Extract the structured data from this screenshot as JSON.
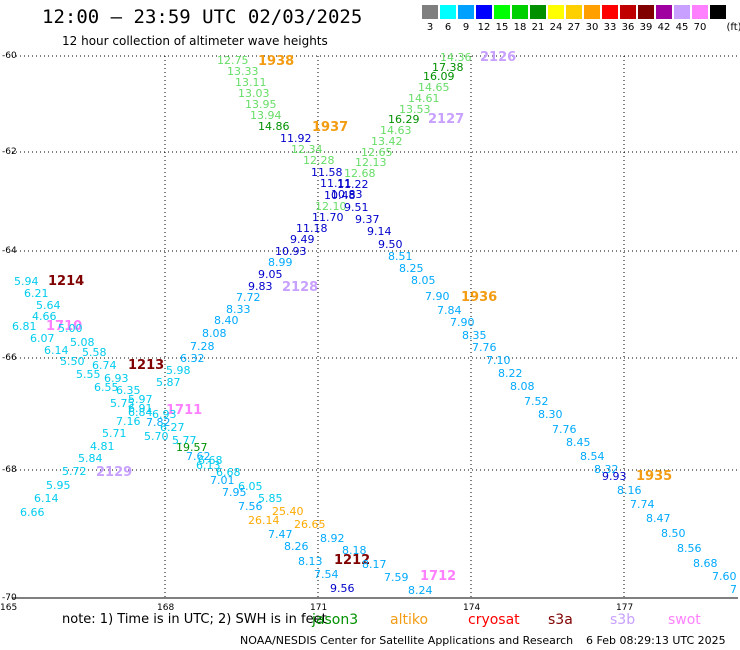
{
  "header": {
    "title": "12:00 — 23:59 UTC 02/03/2025",
    "subtitle": "12 hour collection of altimeter wave heights"
  },
  "legend": {
    "unit": "(ft)",
    "bins": [
      {
        "label": "3",
        "color": "#7f7f7f"
      },
      {
        "label": "6",
        "color": "#00ffff"
      },
      {
        "label": "9",
        "color": "#00a0ff"
      },
      {
        "label": "12",
        "color": "#0000ff"
      },
      {
        "label": "15",
        "color": "#00ff00"
      },
      {
        "label": "18",
        "color": "#00d000"
      },
      {
        "label": "21",
        "color": "#009000"
      },
      {
        "label": "24",
        "color": "#ffff00"
      },
      {
        "label": "27",
        "color": "#ffd000"
      },
      {
        "label": "30",
        "color": "#ffa000"
      },
      {
        "label": "33",
        "color": "#ff0000"
      },
      {
        "label": "36",
        "color": "#c00000"
      },
      {
        "label": "39",
        "color": "#800000"
      },
      {
        "label": "42",
        "color": "#a000a0"
      },
      {
        "label": "45",
        "color": "#c8a0ff"
      },
      {
        "label": "70",
        "color": "#ff80ff"
      },
      {
        "label": "",
        "color": "#000000"
      }
    ]
  },
  "axes": {
    "lat_labels": [
      "-60",
      "-62",
      "-64",
      "-66",
      "-68",
      "-70"
    ],
    "lon_labels": [
      "165",
      "168",
      "171",
      "174",
      "177"
    ]
  },
  "track_times": [
    {
      "text": "1938",
      "color": "#f39c12"
    },
    {
      "text": "1937",
      "color": "#f39c12"
    },
    {
      "text": "2126",
      "color": "#c8a0ff"
    },
    {
      "text": "2127",
      "color": "#c8a0ff"
    },
    {
      "text": "2128",
      "color": "#c8a0ff"
    },
    {
      "text": "1936",
      "color": "#f39c12"
    },
    {
      "text": "1214",
      "color": "#800000"
    },
    {
      "text": "1213",
      "color": "#800000"
    },
    {
      "text": "1711",
      "color": "#ff80ff"
    },
    {
      "text": "1710",
      "color": "#ff80ff"
    },
    {
      "text": "2129",
      "color": "#c8a0ff"
    },
    {
      "text": "1935",
      "color": "#f39c12"
    },
    {
      "text": "1212",
      "color": "#800000"
    },
    {
      "text": "1712",
      "color": "#ff80ff"
    }
  ],
  "readings": [
    {
      "v": "12.75",
      "c": "#66dd66"
    },
    {
      "v": "13.33",
      "c": "#66dd66"
    },
    {
      "v": "13.11",
      "c": "#66dd66"
    },
    {
      "v": "13.03",
      "c": "#66dd66"
    },
    {
      "v": "13.95",
      "c": "#66dd66"
    },
    {
      "v": "13.94",
      "c": "#66dd66"
    },
    {
      "v": "14.86",
      "c": "#009000"
    },
    {
      "v": "11.92",
      "c": "#0000cc"
    },
    {
      "v": "12.34",
      "c": "#66dd66"
    },
    {
      "v": "12.28",
      "c": "#66dd66"
    },
    {
      "v": "11.58",
      "c": "#0000cc"
    },
    {
      "v": "11.11",
      "c": "#0000cc"
    },
    {
      "v": "10.48",
      "c": "#0000cc"
    },
    {
      "v": "12.10",
      "c": "#66dd66"
    },
    {
      "v": "11.70",
      "c": "#0000cc"
    },
    {
      "v": "11.18",
      "c": "#0000cc"
    },
    {
      "v": "9.49",
      "c": "#0000cc"
    },
    {
      "v": "10.93",
      "c": "#0000cc"
    },
    {
      "v": "8.99",
      "c": "#00aaff"
    },
    {
      "v": "9.05",
      "c": "#0000cc"
    },
    {
      "v": "9.83",
      "c": "#0000cc"
    },
    {
      "v": "7.72",
      "c": "#00aaff"
    },
    {
      "v": "8.33",
      "c": "#00aaff"
    },
    {
      "v": "8.40",
      "c": "#00aaff"
    },
    {
      "v": "8.08",
      "c": "#00aaff"
    },
    {
      "v": "7.28",
      "c": "#00aaff"
    },
    {
      "v": "6.32",
      "c": "#00aaff"
    },
    {
      "v": "5.98",
      "c": "#00ccee"
    },
    {
      "v": "5.87",
      "c": "#00ccee"
    },
    {
      "v": "14.36",
      "c": "#66dd66"
    },
    {
      "v": "17.38",
      "c": "#009000"
    },
    {
      "v": "16.09",
      "c": "#009000"
    },
    {
      "v": "14.65",
      "c": "#66dd66"
    },
    {
      "v": "14.61",
      "c": "#66dd66"
    },
    {
      "v": "13.53",
      "c": "#66dd66"
    },
    {
      "v": "16.29",
      "c": "#009000"
    },
    {
      "v": "14.63",
      "c": "#66dd66"
    },
    {
      "v": "13.42",
      "c": "#66dd66"
    },
    {
      "v": "12.65",
      "c": "#66dd66"
    },
    {
      "v": "12.13",
      "c": "#66dd66"
    },
    {
      "v": "12.68",
      "c": "#66dd66"
    },
    {
      "v": "11.22",
      "c": "#0000cc"
    },
    {
      "v": "10.83",
      "c": "#0000cc"
    },
    {
      "v": "9.51",
      "c": "#0000cc"
    },
    {
      "v": "9.37",
      "c": "#0000cc"
    },
    {
      "v": "9.14",
      "c": "#0000cc"
    },
    {
      "v": "9.50",
      "c": "#0000cc"
    },
    {
      "v": "8.51",
      "c": "#00aaff"
    },
    {
      "v": "8.25",
      "c": "#00aaff"
    },
    {
      "v": "8.05",
      "c": "#00aaff"
    },
    {
      "v": "7.90",
      "c": "#00aaff"
    },
    {
      "v": "7.84",
      "c": "#00aaff"
    },
    {
      "v": "7.90",
      "c": "#00aaff"
    },
    {
      "v": "8.35",
      "c": "#00aaff"
    },
    {
      "v": "7.76",
      "c": "#00aaff"
    },
    {
      "v": "7.10",
      "c": "#00aaff"
    },
    {
      "v": "8.22",
      "c": "#00aaff"
    },
    {
      "v": "8.08",
      "c": "#00aaff"
    },
    {
      "v": "7.52",
      "c": "#00aaff"
    },
    {
      "v": "8.30",
      "c": "#00aaff"
    },
    {
      "v": "7.76",
      "c": "#00aaff"
    },
    {
      "v": "8.45",
      "c": "#00aaff"
    },
    {
      "v": "8.54",
      "c": "#00aaff"
    },
    {
      "v": "8.32",
      "c": "#00aaff"
    },
    {
      "v": "9.93",
      "c": "#0000cc"
    },
    {
      "v": "8.16",
      "c": "#00aaff"
    },
    {
      "v": "7.74",
      "c": "#00aaff"
    },
    {
      "v": "8.47",
      "c": "#00aaff"
    },
    {
      "v": "8.50",
      "c": "#00aaff"
    },
    {
      "v": "8.56",
      "c": "#00aaff"
    },
    {
      "v": "8.68",
      "c": "#00aaff"
    },
    {
      "v": "7.60",
      "c": "#00aaff"
    },
    {
      "v": "7",
      "c": "#00aaff"
    },
    {
      "v": "5.94",
      "c": "#00ccee"
    },
    {
      "v": "6.21",
      "c": "#00ccee"
    },
    {
      "v": "5.64",
      "c": "#00ccee"
    },
    {
      "v": "4.66",
      "c": "#00ccee"
    },
    {
      "v": "6.81",
      "c": "#00ccee"
    },
    {
      "v": "5.00",
      "c": "#00ccee"
    },
    {
      "v": "6.07",
      "c": "#00ccee"
    },
    {
      "v": "5.08",
      "c": "#00ccee"
    },
    {
      "v": "6.14",
      "c": "#00ccee"
    },
    {
      "v": "5.58",
      "c": "#00ccee"
    },
    {
      "v": "5.50",
      "c": "#00ccee"
    },
    {
      "v": "6.74",
      "c": "#00ccee"
    },
    {
      "v": "5.55",
      "c": "#00ccee"
    },
    {
      "v": "6.93",
      "c": "#00ccee"
    },
    {
      "v": "6.55",
      "c": "#00ccee"
    },
    {
      "v": "6.35",
      "c": "#00ccee"
    },
    {
      "v": "5.75",
      "c": "#00ccee"
    },
    {
      "v": "5.97",
      "c": "#00ccee"
    },
    {
      "v": "6.84",
      "c": "#00ccee"
    },
    {
      "v": "6.91",
      "c": "#00ccee"
    },
    {
      "v": "7.16",
      "c": "#00ccee"
    },
    {
      "v": "7.82",
      "c": "#00aaff"
    },
    {
      "v": "6.93",
      "c": "#00ccee"
    },
    {
      "v": "6.27",
      "c": "#00ccee"
    },
    {
      "v": "5.71",
      "c": "#00ccee"
    },
    {
      "v": "5.70",
      "c": "#00ccee"
    },
    {
      "v": "5.77",
      "c": "#00ccee"
    },
    {
      "v": "19.57",
      "c": "#009000"
    },
    {
      "v": "7.62",
      "c": "#00aaff"
    },
    {
      "v": "4.81",
      "c": "#00ccee"
    },
    {
      "v": "6.68",
      "c": "#00ccee"
    },
    {
      "v": "5.84",
      "c": "#00ccee"
    },
    {
      "v": "6.13",
      "c": "#00ccee"
    },
    {
      "v": "5.72",
      "c": "#00ccee"
    },
    {
      "v": "6.68",
      "c": "#00ccee"
    },
    {
      "v": "7.01",
      "c": "#00aaff"
    },
    {
      "v": "5.95",
      "c": "#00ccee"
    },
    {
      "v": "6.05",
      "c": "#00ccee"
    },
    {
      "v": "7.95",
      "c": "#00aaff"
    },
    {
      "v": "6.14",
      "c": "#00ccee"
    },
    {
      "v": "5.85",
      "c": "#00ccee"
    },
    {
      "v": "6.66",
      "c": "#00ccee"
    },
    {
      "v": "7.56",
      "c": "#00aaff"
    },
    {
      "v": "25.40",
      "c": "#ffaa00"
    },
    {
      "v": "26.14",
      "c": "#ffaa00"
    },
    {
      "v": "26.65",
      "c": "#ffaa00"
    },
    {
      "v": "7.47",
      "c": "#00aaff"
    },
    {
      "v": "8.92",
      "c": "#00aaff"
    },
    {
      "v": "8.26",
      "c": "#00aaff"
    },
    {
      "v": "8.18",
      "c": "#00aaff"
    },
    {
      "v": "8.13",
      "c": "#00aaff"
    },
    {
      "v": "8.17",
      "c": "#00aaff"
    },
    {
      "v": "7.54",
      "c": "#00aaff"
    },
    {
      "v": "7.59",
      "c": "#00aaff"
    },
    {
      "v": "9.56",
      "c": "#0000cc"
    },
    {
      "v": "8.24",
      "c": "#00aaff"
    }
  ],
  "footer": {
    "note": "note:  1) Time is in UTC; 2) SWH is in feet",
    "satellites": [
      {
        "name": "jason3",
        "color": "#009000"
      },
      {
        "name": "altiko",
        "color": "#f39c12"
      },
      {
        "name": "cryosat",
        "color": "#ff0000"
      },
      {
        "name": "s3a",
        "color": "#800000"
      },
      {
        "name": "s3b",
        "color": "#c8a0ff"
      },
      {
        "name": "swot",
        "color": "#ff80ff"
      }
    ],
    "credit": "NOAA/NESDIS Center for Satellite Applications and Research",
    "timestamp": "6 Feb 08:29:13 UTC 2025"
  }
}
